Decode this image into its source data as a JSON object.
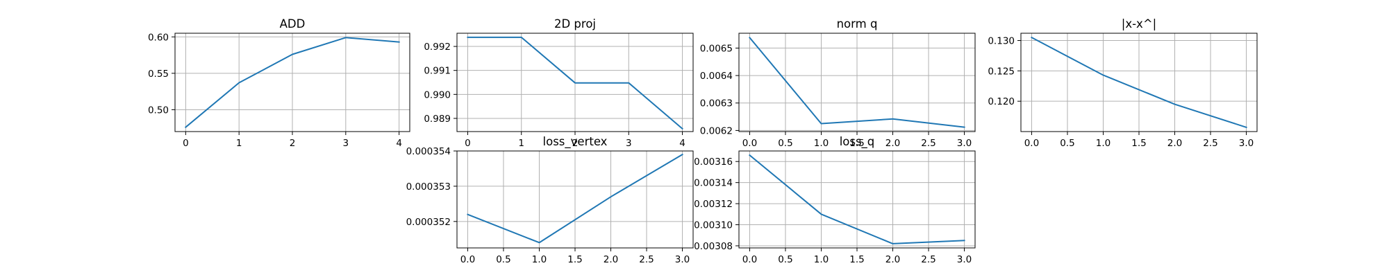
{
  "series_color": "#1f77b4",
  "chart_data": [
    {
      "type": "line",
      "title": "ADD",
      "x": [
        0,
        1,
        2,
        3,
        4
      ],
      "y": [
        0.476,
        0.537,
        0.576,
        0.599,
        0.593
      ],
      "xlim": [
        -0.2,
        4.2
      ],
      "ylim": [
        0.47,
        0.605
      ],
      "xticks": [
        0,
        1,
        2,
        3,
        4
      ],
      "yticks": [
        0.5,
        0.55,
        0.6
      ],
      "xtick_labels": [
        "0",
        "1",
        "2",
        "3",
        "4"
      ],
      "ytick_labels": [
        "0.50",
        "0.55",
        "0.60"
      ],
      "grid": true
    },
    {
      "type": "line",
      "title": "2D proj",
      "x": [
        0,
        1,
        2,
        3,
        4
      ],
      "y": [
        0.99238,
        0.99238,
        0.99048,
        0.99048,
        0.98857
      ],
      "xlim": [
        -0.2,
        4.2
      ],
      "ylim": [
        0.98845,
        0.99255
      ],
      "xticks": [
        0,
        1,
        2,
        3,
        4
      ],
      "yticks": [
        0.989,
        0.99,
        0.991,
        0.992
      ],
      "xtick_labels": [
        "0",
        "1",
        "2",
        "3",
        "4"
      ],
      "ytick_labels": [
        "0.989",
        "0.990",
        "0.991",
        "0.992"
      ],
      "grid": true
    },
    {
      "type": "line",
      "title": "norm q",
      "x": [
        0,
        1,
        2,
        3
      ],
      "y": [
        0.006538,
        0.006225,
        0.006242,
        0.006212
      ],
      "xlim": [
        -0.15,
        3.15
      ],
      "ylim": [
        0.006196,
        0.006554
      ],
      "xticks": [
        0.0,
        0.5,
        1.0,
        1.5,
        2.0,
        2.5,
        3.0
      ],
      "yticks": [
        0.0062,
        0.0063,
        0.0064,
        0.0065
      ],
      "xtick_labels": [
        "0.0",
        "0.5",
        "1.0",
        "1.5",
        "2.0",
        "2.5",
        "3.0"
      ],
      "ytick_labels": [
        "0.0062",
        "0.0063",
        "0.0064",
        "0.0065"
      ],
      "grid": true
    },
    {
      "type": "line",
      "title": "|x-x^|",
      "x": [
        0,
        1,
        2,
        3
      ],
      "y": [
        0.1305,
        0.1243,
        0.1195,
        0.1157
      ],
      "xlim": [
        -0.15,
        3.15
      ],
      "ylim": [
        0.115,
        0.1312
      ],
      "xticks": [
        0.0,
        0.5,
        1.0,
        1.5,
        2.0,
        2.5,
        3.0
      ],
      "yticks": [
        0.12,
        0.125,
        0.13
      ],
      "xtick_labels": [
        "0.0",
        "0.5",
        "1.0",
        "1.5",
        "2.0",
        "2.5",
        "3.0"
      ],
      "ytick_labels": [
        "0.120",
        "0.125",
        "0.130"
      ],
      "grid": true
    },
    {
      "type": "line",
      "title": "loss_vertex",
      "x": [
        0,
        1,
        2,
        3
      ],
      "y": [
        0.0003522,
        0.0003514,
        0.0003527,
        0.0003539
      ],
      "xlim": [
        -0.15,
        3.15
      ],
      "ylim": [
        0.00035125,
        0.000354
      ],
      "xticks": [
        0.0,
        0.5,
        1.0,
        1.5,
        2.0,
        2.5,
        3.0
      ],
      "yticks": [
        0.000352,
        0.000353,
        0.000354
      ],
      "xtick_labels": [
        "0.0",
        "0.5",
        "1.0",
        "1.5",
        "2.0",
        "2.5",
        "3.0"
      ],
      "ytick_labels": [
        "0.000352",
        "0.000353",
        "0.000354"
      ],
      "grid": true
    },
    {
      "type": "line",
      "title": "loss_q",
      "x": [
        0,
        1,
        2,
        3
      ],
      "y": [
        0.003166,
        0.00311,
        0.003082,
        0.003085
      ],
      "xlim": [
        -0.15,
        3.15
      ],
      "ylim": [
        0.003078,
        0.00317
      ],
      "xticks": [
        0.0,
        0.5,
        1.0,
        1.5,
        2.0,
        2.5,
        3.0
      ],
      "yticks": [
        0.00308,
        0.0031,
        0.00312,
        0.00314,
        0.00316
      ],
      "xtick_labels": [
        "0.0",
        "0.5",
        "1.0",
        "1.5",
        "2.0",
        "2.5",
        "3.0"
      ],
      "ytick_labels": [
        "0.00308",
        "0.00310",
        "0.00312",
        "0.00314",
        "0.00316"
      ],
      "grid": true
    }
  ]
}
